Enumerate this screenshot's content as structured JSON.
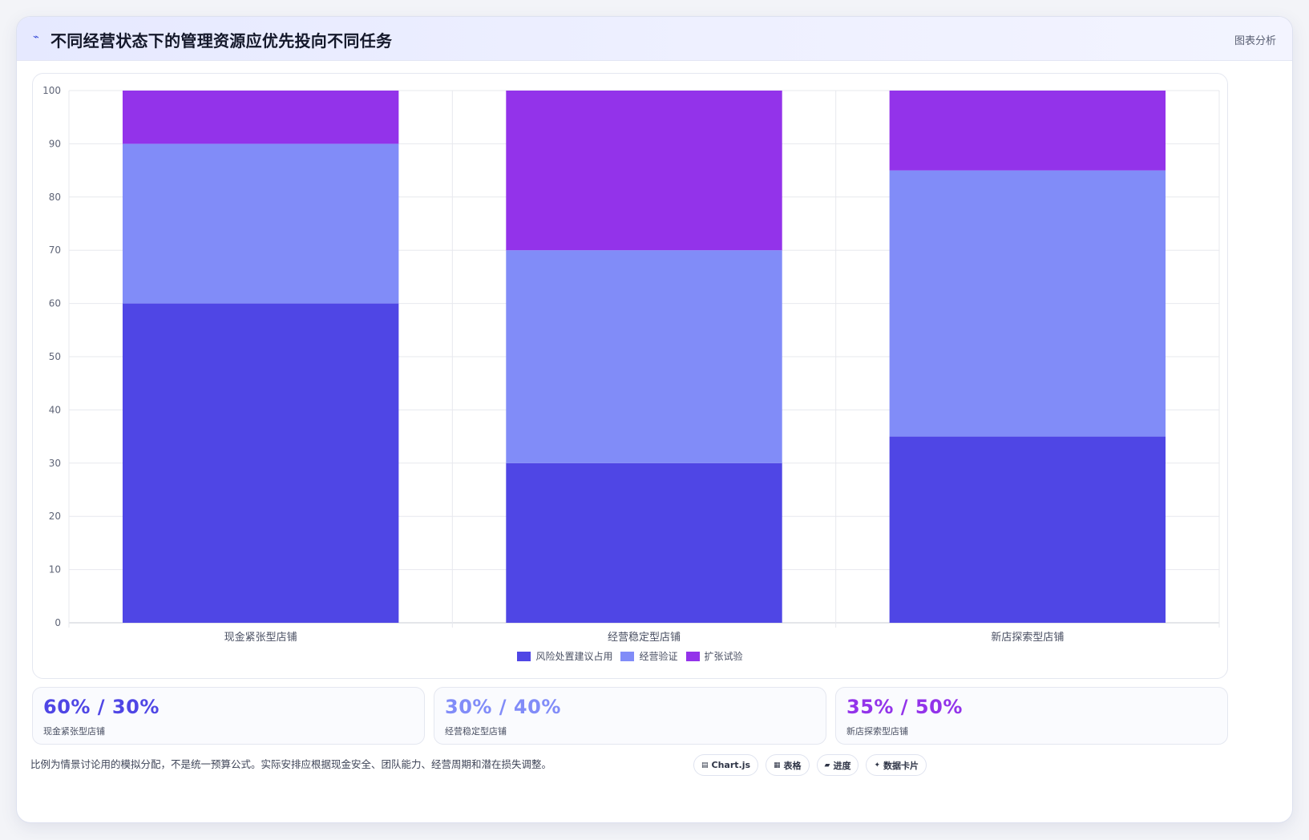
{
  "header": {
    "title": "不同经营状态下的管理资源应优先投向不同任务",
    "tag": "图表分析"
  },
  "colors": {
    "risk": "#4f46e5",
    "validation": "#818cf8",
    "expansion": "#9333ea"
  },
  "chart_data": {
    "type": "bar",
    "stacked": true,
    "categories": [
      "现金紧张型店铺",
      "经营稳定型店铺",
      "新店探索型店铺"
    ],
    "series": [
      {
        "name": "风险处置建议占用",
        "color": "#4f46e5",
        "values": [
          60,
          30,
          35
        ]
      },
      {
        "name": "经营验证",
        "color": "#818cf8",
        "values": [
          30,
          40,
          50
        ]
      },
      {
        "name": "扩张试验",
        "color": "#9333ea",
        "values": [
          10,
          30,
          15
        ]
      }
    ],
    "ylim": [
      0,
      100
    ],
    "yticks": [
      0,
      10,
      20,
      30,
      40,
      50,
      60,
      70,
      80,
      90,
      100
    ],
    "grid": true,
    "legend": "bottom"
  },
  "stats": [
    {
      "value": "60% / 30%",
      "label": "现金紧张型店铺",
      "color": "#4f46e5"
    },
    {
      "value": "30% / 40%",
      "label": "经营稳定型店铺",
      "color": "#818cf8"
    },
    {
      "value": "35% / 50%",
      "label": "新店探索型店铺",
      "color": "#9333ea"
    }
  ],
  "footnote": "比例为情景讨论用的模拟分配，不是统一预算公式。实际安排应根据现金安全、团队能力、经营周期和潜在损失调整。",
  "chips": [
    {
      "label": "Chart.js",
      "icon": "chart-icon",
      "glyph": "▤"
    },
    {
      "label": "表格",
      "icon": "table-icon",
      "glyph": "▦"
    },
    {
      "label": "进度",
      "icon": "progress-icon",
      "glyph": "▰"
    },
    {
      "label": "数据卡片",
      "icon": "sparkle-icon",
      "glyph": "✦"
    }
  ]
}
